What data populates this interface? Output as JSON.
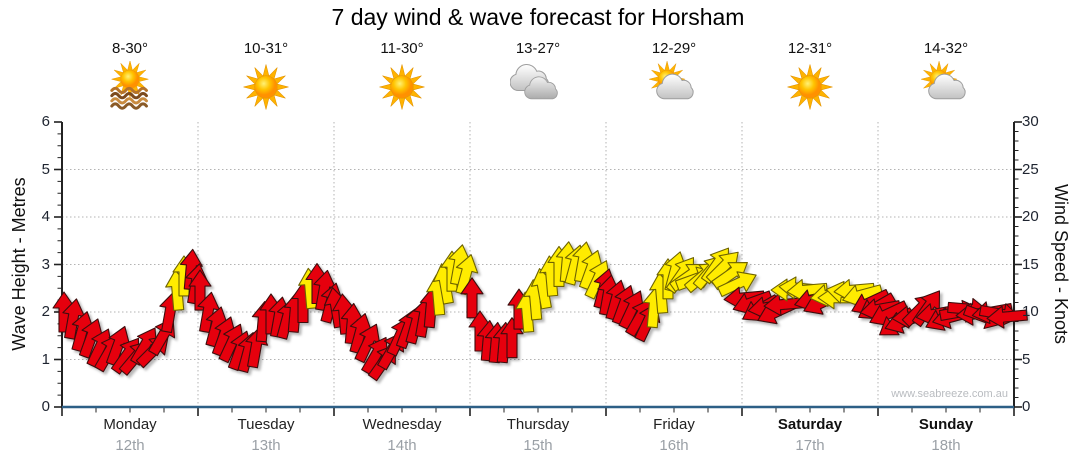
{
  "title": "7 day wind & wave forecast for Horsham",
  "watermark": "www.seabreeze.com.au",
  "axes": {
    "left_label": "Wave Height - Metres",
    "right_label": "Wind Speed - Knots",
    "left_ticks": [
      0,
      1,
      2,
      3,
      4,
      5,
      6
    ],
    "right_ticks": [
      0,
      5,
      10,
      15,
      20,
      25,
      30
    ]
  },
  "days": [
    {
      "name": "Monday",
      "date": "12th",
      "temp": "8-30°",
      "icon": "sun-haze",
      "bold": false
    },
    {
      "name": "Tuesday",
      "date": "13th",
      "temp": "10-31°",
      "icon": "sunny",
      "bold": false
    },
    {
      "name": "Wednesday",
      "date": "14th",
      "temp": "11-30°",
      "icon": "sunny",
      "bold": false
    },
    {
      "name": "Thursday",
      "date": "15th",
      "temp": "13-27°",
      "icon": "cloudy",
      "bold": false
    },
    {
      "name": "Friday",
      "date": "16th",
      "temp": "12-29°",
      "icon": "partly-cloudy",
      "bold": false
    },
    {
      "name": "Saturday",
      "date": "17th",
      "temp": "12-31°",
      "icon": "sunny",
      "bold": true
    },
    {
      "name": "Sunday",
      "date": "18th",
      "temp": "14-32°",
      "icon": "partly-cloudy",
      "bold": true
    }
  ],
  "colors": {
    "arrow_red": "#e60008",
    "arrow_red_outline": "#3c0d0d",
    "arrow_yellow": "#ffec00",
    "arrow_yellow_outline": "#6e6400",
    "axis_bottom_blue": "#2d5f86",
    "axis_spine": "#222222",
    "grid_gray": "#b3b3b3",
    "date_gray": "#9aa0a6"
  },
  "chart_data": {
    "type": "wind-arrows",
    "title": "7 day wind & wave forecast for Horsham",
    "wave_height_ylim_metres": [
      0,
      6
    ],
    "wind_speed_ylim_knots": [
      0,
      30
    ],
    "grid": "dotted, horizontal at each metre 1-5, vertical at day boundaries",
    "legend": "arrow y-position = wind speed in knots; arrow rotation = wind direction; color red/yellow",
    "categories": [
      "Monday 12th",
      "Tuesday 13th",
      "Wednesday 14th",
      "Thursday 15th",
      "Friday 16th",
      "Saturday 17th",
      "Sunday 18th"
    ],
    "arrow_format": [
      "x_px_across_week_0_to_952",
      "wind_speed_knots",
      "direction_deg_0_is_up",
      "color r|y"
    ],
    "arrows": [
      [
        2,
        10,
        0,
        "r"
      ],
      [
        11,
        9.3,
        10,
        "r"
      ],
      [
        20,
        8,
        15,
        "r"
      ],
      [
        29,
        7.3,
        20,
        "r"
      ],
      [
        38,
        6.3,
        25,
        "r"
      ],
      [
        47,
        5.8,
        30,
        "r"
      ],
      [
        56,
        6.5,
        20,
        "r"
      ],
      [
        65,
        5.5,
        35,
        "r"
      ],
      [
        74,
        5.3,
        40,
        "r"
      ],
      [
        83,
        6.5,
        30,
        "r"
      ],
      [
        92,
        6,
        45,
        "r"
      ],
      [
        101,
        7.5,
        30,
        "r"
      ],
      [
        108,
        10,
        10,
        "r"
      ],
      [
        115,
        12.3,
        -5,
        "y"
      ],
      [
        122,
        13.8,
        0,
        "y"
      ],
      [
        129,
        14.5,
        5,
        "r"
      ],
      [
        134,
        13,
        10,
        "r"
      ],
      [
        138,
        12.3,
        0,
        "r"
      ],
      [
        146,
        10,
        10,
        "r"
      ],
      [
        154,
        8.5,
        15,
        "r"
      ],
      [
        162,
        7.5,
        20,
        "r"
      ],
      [
        170,
        6.8,
        25,
        "r"
      ],
      [
        178,
        6,
        20,
        "r"
      ],
      [
        186,
        5.8,
        15,
        "r"
      ],
      [
        194,
        6.3,
        10,
        "r"
      ],
      [
        201,
        9,
        5,
        "r"
      ],
      [
        209,
        9.8,
        0,
        "r"
      ],
      [
        217,
        9.5,
        10,
        "r"
      ],
      [
        225,
        9.3,
        15,
        "r"
      ],
      [
        233,
        10,
        5,
        "r"
      ],
      [
        241,
        11,
        0,
        "r"
      ],
      [
        248,
        12.5,
        -5,
        "y"
      ],
      [
        255,
        13,
        0,
        "r"
      ],
      [
        262,
        12.3,
        10,
        "r"
      ],
      [
        269,
        11,
        15,
        "r"
      ],
      [
        274,
        10.5,
        -10,
        "r"
      ],
      [
        282,
        9.8,
        -5,
        "r"
      ],
      [
        290,
        8.8,
        5,
        "r"
      ],
      [
        298,
        7.8,
        15,
        "r"
      ],
      [
        306,
        6.8,
        25,
        "r"
      ],
      [
        314,
        5.5,
        30,
        "r"
      ],
      [
        322,
        4.8,
        35,
        "r"
      ],
      [
        330,
        6,
        30,
        "r"
      ],
      [
        338,
        7.5,
        25,
        "r"
      ],
      [
        346,
        8.3,
        20,
        "r"
      ],
      [
        354,
        8.8,
        15,
        "r"
      ],
      [
        362,
        9.5,
        10,
        "r"
      ],
      [
        369,
        10.5,
        5,
        "r"
      ],
      [
        376,
        11.8,
        -5,
        "y"
      ],
      [
        383,
        13,
        -10,
        "y"
      ],
      [
        390,
        14.3,
        0,
        "y"
      ],
      [
        397,
        15,
        10,
        "y"
      ],
      [
        404,
        14,
        15,
        "y"
      ],
      [
        410,
        11.5,
        0,
        "r"
      ],
      [
        418,
        8,
        0,
        "r"
      ],
      [
        426,
        7,
        5,
        "r"
      ],
      [
        434,
        6.8,
        5,
        "r"
      ],
      [
        442,
        6.8,
        5,
        "r"
      ],
      [
        450,
        7.3,
        0,
        "r"
      ],
      [
        457,
        10.3,
        0,
        "r"
      ],
      [
        465,
        10,
        -5,
        "y"
      ],
      [
        473,
        11.3,
        -5,
        "y"
      ],
      [
        481,
        12.5,
        -10,
        "y"
      ],
      [
        489,
        13.8,
        -5,
        "y"
      ],
      [
        497,
        14.8,
        0,
        "y"
      ],
      [
        505,
        15.3,
        5,
        "y"
      ],
      [
        513,
        15,
        15,
        "y"
      ],
      [
        521,
        15.3,
        10,
        "y"
      ],
      [
        529,
        14.5,
        20,
        "y"
      ],
      [
        536,
        13.5,
        25,
        "y"
      ],
      [
        542,
        12.5,
        15,
        "r"
      ],
      [
        546,
        11.8,
        10,
        "r"
      ],
      [
        554,
        11.3,
        15,
        "r"
      ],
      [
        562,
        10.8,
        20,
        "r"
      ],
      [
        570,
        10.3,
        25,
        "r"
      ],
      [
        578,
        9.5,
        30,
        "r"
      ],
      [
        586,
        9,
        25,
        "r"
      ],
      [
        592,
        10.5,
        5,
        "y"
      ],
      [
        599,
        12,
        -5,
        "y"
      ],
      [
        606,
        13.5,
        0,
        "y"
      ],
      [
        613,
        14.3,
        15,
        "y"
      ],
      [
        620,
        14,
        35,
        "y"
      ],
      [
        627,
        13.8,
        55,
        "y"
      ],
      [
        634,
        13.5,
        70,
        "y"
      ],
      [
        641,
        13.8,
        50,
        "y"
      ],
      [
        648,
        14.3,
        40,
        "y"
      ],
      [
        655,
        15,
        35,
        "y"
      ],
      [
        662,
        14.8,
        45,
        "y"
      ],
      [
        669,
        14,
        55,
        "y"
      ],
      [
        676,
        13,
        65,
        "y"
      ],
      [
        682,
        11.5,
        -95,
        "r"
      ],
      [
        690,
        11,
        -110,
        "r"
      ],
      [
        698,
        10.3,
        -120,
        "r"
      ],
      [
        706,
        10.5,
        -100,
        "r"
      ],
      [
        714,
        10,
        -115,
        "r"
      ],
      [
        722,
        10.8,
        -95,
        "r"
      ],
      [
        729,
        12.3,
        -90,
        "y"
      ],
      [
        737,
        12.5,
        -85,
        "y"
      ],
      [
        745,
        12.3,
        -95,
        "y"
      ],
      [
        752,
        11.3,
        -105,
        "r"
      ],
      [
        760,
        11,
        -115,
        "r"
      ],
      [
        768,
        11.8,
        -100,
        "y"
      ],
      [
        776,
        11.5,
        -90,
        "y"
      ],
      [
        784,
        12,
        -80,
        "y"
      ],
      [
        792,
        12.3,
        -95,
        "y"
      ],
      [
        800,
        11.8,
        -105,
        "y"
      ],
      [
        808,
        11,
        -115,
        "r"
      ],
      [
        814,
        10.5,
        -120,
        "r"
      ],
      [
        818,
        10.3,
        -100,
        "r"
      ],
      [
        826,
        9.8,
        -115,
        "r"
      ],
      [
        834,
        8.8,
        -125,
        "r"
      ],
      [
        842,
        9,
        -110,
        "r"
      ],
      [
        850,
        9.5,
        -95,
        "r"
      ],
      [
        858,
        10.3,
        45,
        "r"
      ],
      [
        866,
        10.5,
        35,
        "r"
      ],
      [
        874,
        9.8,
        -100,
        "r"
      ],
      [
        882,
        9.3,
        -115,
        "r"
      ],
      [
        890,
        9.5,
        -105,
        "r"
      ],
      [
        898,
        10,
        80,
        "r"
      ],
      [
        906,
        10.3,
        95,
        "r"
      ],
      [
        914,
        9.8,
        -95,
        "r"
      ],
      [
        922,
        9.5,
        110,
        "r"
      ],
      [
        930,
        10,
        -100,
        "r"
      ],
      [
        938,
        9.8,
        100,
        "r"
      ],
      [
        945,
        9.5,
        -95,
        "r"
      ]
    ]
  }
}
